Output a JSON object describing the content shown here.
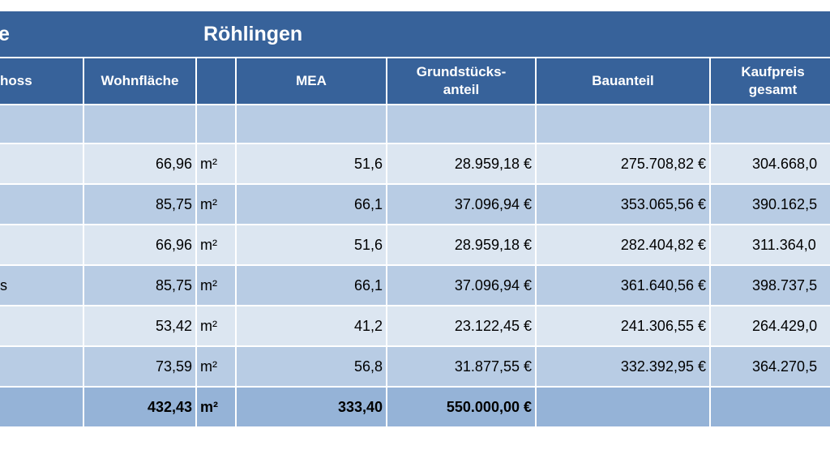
{
  "title": {
    "left": "e",
    "main": "Röhlingen"
  },
  "header": {
    "label": "hoss",
    "area": "Wohnfläche",
    "mea": "MEA",
    "land": "Grundstücks-\nanteil",
    "building": "Bauanteil",
    "total": "Kaufpreis\ngesamt"
  },
  "rows": [
    {
      "area": "66,96",
      "unit": "m²",
      "mea": "51,6",
      "land": "28.959,18 €",
      "building": "275.708,82 €",
      "total": "304.668,0"
    },
    {
      "area": "85,75",
      "unit": "m²",
      "mea": "66,1",
      "land": "37.096,94 €",
      "building": "353.065,56 €",
      "total": "390.162,5"
    },
    {
      "area": "66,96",
      "unit": "m²",
      "mea": "51,6",
      "land": "28.959,18 €",
      "building": "282.404,82 €",
      "total": "311.364,0"
    },
    {
      "label": "s",
      "area": "85,75",
      "unit": "m²",
      "mea": "66,1",
      "land": "37.096,94 €",
      "building": "361.640,56 €",
      "total": "398.737,5"
    },
    {
      "area": "53,42",
      "unit": "m²",
      "mea": "41,2",
      "land": "23.122,45 €",
      "building": "241.306,55 €",
      "total": "264.429,0"
    },
    {
      "area": "73,59",
      "unit": "m²",
      "mea": "56,8",
      "land": "31.877,55 €",
      "building": "332.392,95 €",
      "total": "364.270,5"
    }
  ],
  "totals": {
    "area": "432,43",
    "unit": "m²",
    "mea": "333,40",
    "land": "550.000,00 €"
  }
}
